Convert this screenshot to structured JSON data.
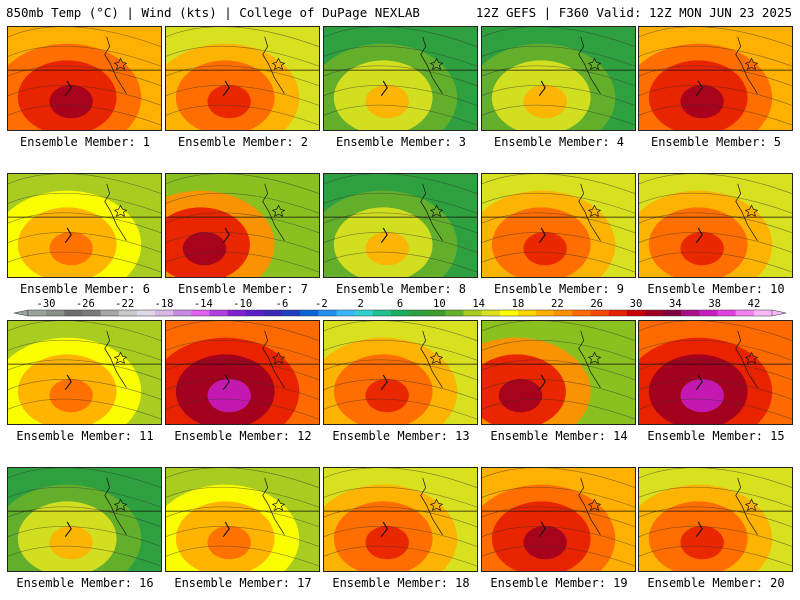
{
  "header": {
    "left": "850mb Temp (°C) | Wind (kts) | College of DuPage NEXLAB",
    "right": "12Z GEFS | F360 Valid: 12Z MON JUN 23 2025"
  },
  "label_prefix": "Ensemble Member: ",
  "members": [
    {
      "id": "1",
      "profile": "hot"
    },
    {
      "id": "2",
      "profile": "warm"
    },
    {
      "id": "3",
      "profile": "cool"
    },
    {
      "id": "4",
      "profile": "cool"
    },
    {
      "id": "5",
      "profile": "hot"
    },
    {
      "id": "6",
      "profile": "mild"
    },
    {
      "id": "7",
      "profile": "hot-west"
    },
    {
      "id": "8",
      "profile": "cool"
    },
    {
      "id": "9",
      "profile": "warm"
    },
    {
      "id": "10",
      "profile": "warm"
    },
    {
      "id": "11",
      "profile": "mild"
    },
    {
      "id": "12",
      "profile": "extreme"
    },
    {
      "id": "13",
      "profile": "warm"
    },
    {
      "id": "14",
      "profile": "hot-west"
    },
    {
      "id": "15",
      "profile": "extreme"
    },
    {
      "id": "16",
      "profile": "cool"
    },
    {
      "id": "17",
      "profile": "mild"
    },
    {
      "id": "18",
      "profile": "warm"
    },
    {
      "id": "19",
      "profile": "hot"
    },
    {
      "id": "20",
      "profile": "warm"
    }
  ],
  "colorbar": {
    "ticks": [
      "-30",
      "-26",
      "-22",
      "-18",
      "-14",
      "-10",
      "-6",
      "-2",
      "2",
      "6",
      "10",
      "14",
      "18",
      "22",
      "26",
      "30",
      "34",
      "38",
      "42"
    ],
    "colors": [
      "#9ba29b",
      "#8a8f8a",
      "#6e6e6e",
      "#7b7b7b",
      "#a6a6a6",
      "#c8c8c8",
      "#e0d6e6",
      "#d8b6e6",
      "#c48be0",
      "#e060f0",
      "#b040e0",
      "#8020d0",
      "#5b1fc8",
      "#3a2ab8",
      "#1e3fc0",
      "#0a64d8",
      "#1e90f0",
      "#38b8f8",
      "#30d0d0",
      "#20c090",
      "#18b060",
      "#2ea040",
      "#3c9c2c",
      "#66b02a",
      "#a8cc20",
      "#d8e020",
      "#ffff00",
      "#ffd500",
      "#ffb000",
      "#ff9000",
      "#ff6a00",
      "#f84800",
      "#e82000",
      "#c80000",
      "#a00020",
      "#800040",
      "#a8108a",
      "#c81cc0",
      "#e040e0",
      "#f080f0",
      "#f8b8f8"
    ]
  }
}
